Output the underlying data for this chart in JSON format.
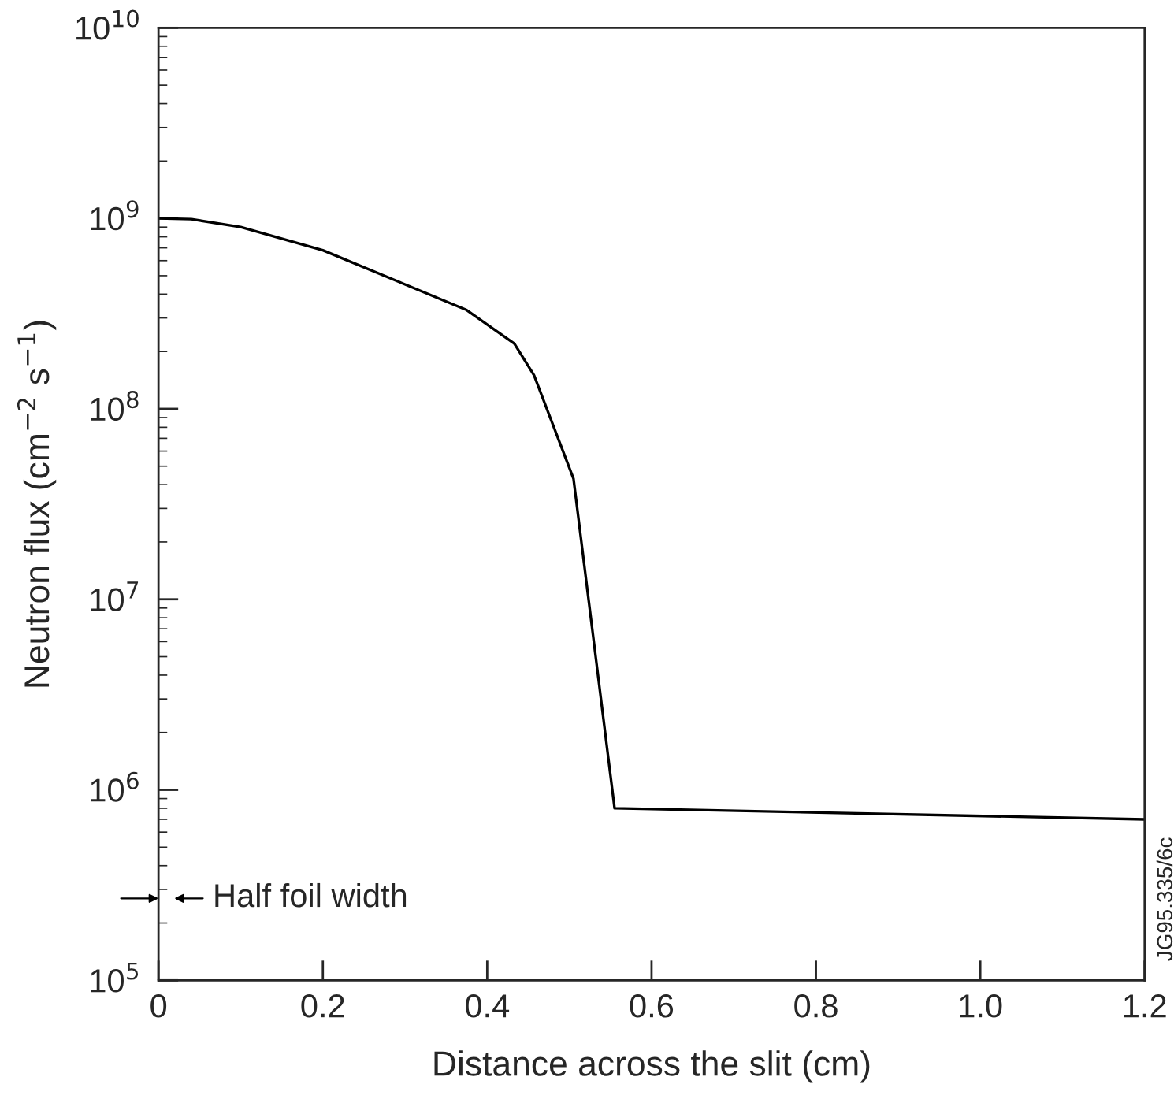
{
  "chart_data": {
    "type": "line",
    "xlabel": "Distance across the slit (cm)",
    "ylabel": "Neutron flux (cm$^{−2}$ s$^{−1}$)",
    "series": [
      {
        "color": "#000000",
        "x": [
          0,
          0.04,
          0.1,
          0.2,
          0.3,
          0.375,
          0.433,
          0.457,
          0.505,
          0.555,
          1.2
        ],
        "values": [
          1000000000,
          990000000,
          900000000,
          680000000,
          450000000,
          330000000,
          220000000,
          150000000,
          43000000,
          800000,
          700000
        ]
      }
    ],
    "log": "y",
    "xlim": [
      0,
      1.2
    ],
    "ylim": [
      100000,
      10000000000
    ],
    "xticks": [
      0,
      0.2,
      0.4,
      0.6,
      0.8,
      {
        "value": 1,
        "label": "1.0"
      },
      1.2
    ],
    "yticks": [
      {
        "value": 100000,
        "label": "10$^{5}$"
      },
      {
        "value": 1000000,
        "label": "10$^{6}$"
      },
      {
        "value": 10000000,
        "label": "10$^{7}$"
      },
      {
        "value": 100000000,
        "label": "10$^{8}$"
      },
      {
        "value": 1000000000,
        "label": "10$^{9}$"
      },
      {
        "value": 10000000000,
        "label": "10$^{10}$"
      }
    ],
    "annotations": [
      "Half foil width",
      "JG95.335/6c"
    ],
    "grid": false,
    "legend": false,
    "marker": "none",
    "line_style": "solid"
  }
}
